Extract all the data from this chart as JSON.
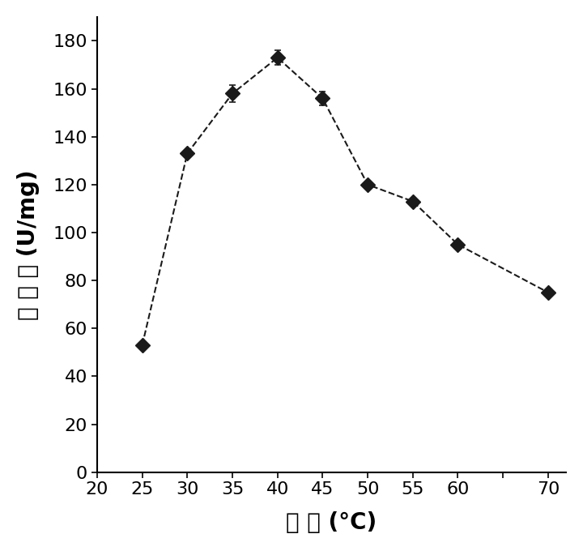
{
  "x": [
    25,
    30,
    35,
    40,
    45,
    50,
    55,
    60,
    70
  ],
  "y": [
    53,
    133,
    158,
    173,
    156,
    120,
    113,
    95,
    75
  ],
  "yerr": [
    0,
    0,
    3.5,
    3.0,
    3.0,
    0,
    0,
    0,
    0
  ],
  "xlim": [
    20,
    72
  ],
  "ylim": [
    0,
    190
  ],
  "xticks": [
    20,
    25,
    30,
    35,
    40,
    45,
    50,
    55,
    60,
    65,
    70
  ],
  "xtick_labels": [
    "20",
    "25",
    "30",
    "35",
    "40",
    "45",
    "50",
    "55",
    "60",
    "",
    "70"
  ],
  "yticks": [
    0,
    20,
    40,
    60,
    80,
    100,
    120,
    140,
    160,
    180
  ],
  "xlabel": "温 度 (°C)",
  "ylabel": "比 酶 活 (U/mg)",
  "line_color": "#1a1a1a",
  "marker_size": 9,
  "line_width": 1.5,
  "capsize": 3,
  "font_size_label": 20,
  "font_size_tick": 16,
  "background_color": "#ffffff",
  "fig_width": 7.2,
  "fig_height": 6.8,
  "dpi": 100
}
